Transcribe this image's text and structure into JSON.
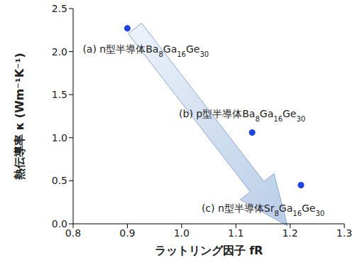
{
  "chart_data": {
    "type": "scatter",
    "x_label": "ラットリング因子 fR",
    "y_label": "熱伝導率 κ (Wm⁻¹K⁻¹)",
    "x": [
      0.9,
      1.13,
      1.22
    ],
    "values": [
      2.27,
      1.06,
      0.45
    ],
    "annotations": [
      "(a) n型半導体Ba8Ga16Ge30",
      "(b) p型半導体Ba8Ga16Ge30",
      "(c) n型半導体Sr8Ga16Ge30"
    ],
    "color": "#1f44e6",
    "marker": "circle",
    "xlim": [
      0.8,
      1.3
    ],
    "xticks": [
      0.8,
      0.9,
      {
        "value": 1,
        "label": "1.0"
      },
      1.1,
      1.2,
      1.3
    ],
    "ylim": [
      0,
      2.5
    ],
    "yticks": [
      {
        "value": 0,
        "label": "0.0"
      },
      0.5,
      {
        "value": 1,
        "label": "1.0"
      },
      1.5,
      {
        "value": 2,
        "label": "2.0"
      },
      2.5
    ],
    "grid": false
  }
}
